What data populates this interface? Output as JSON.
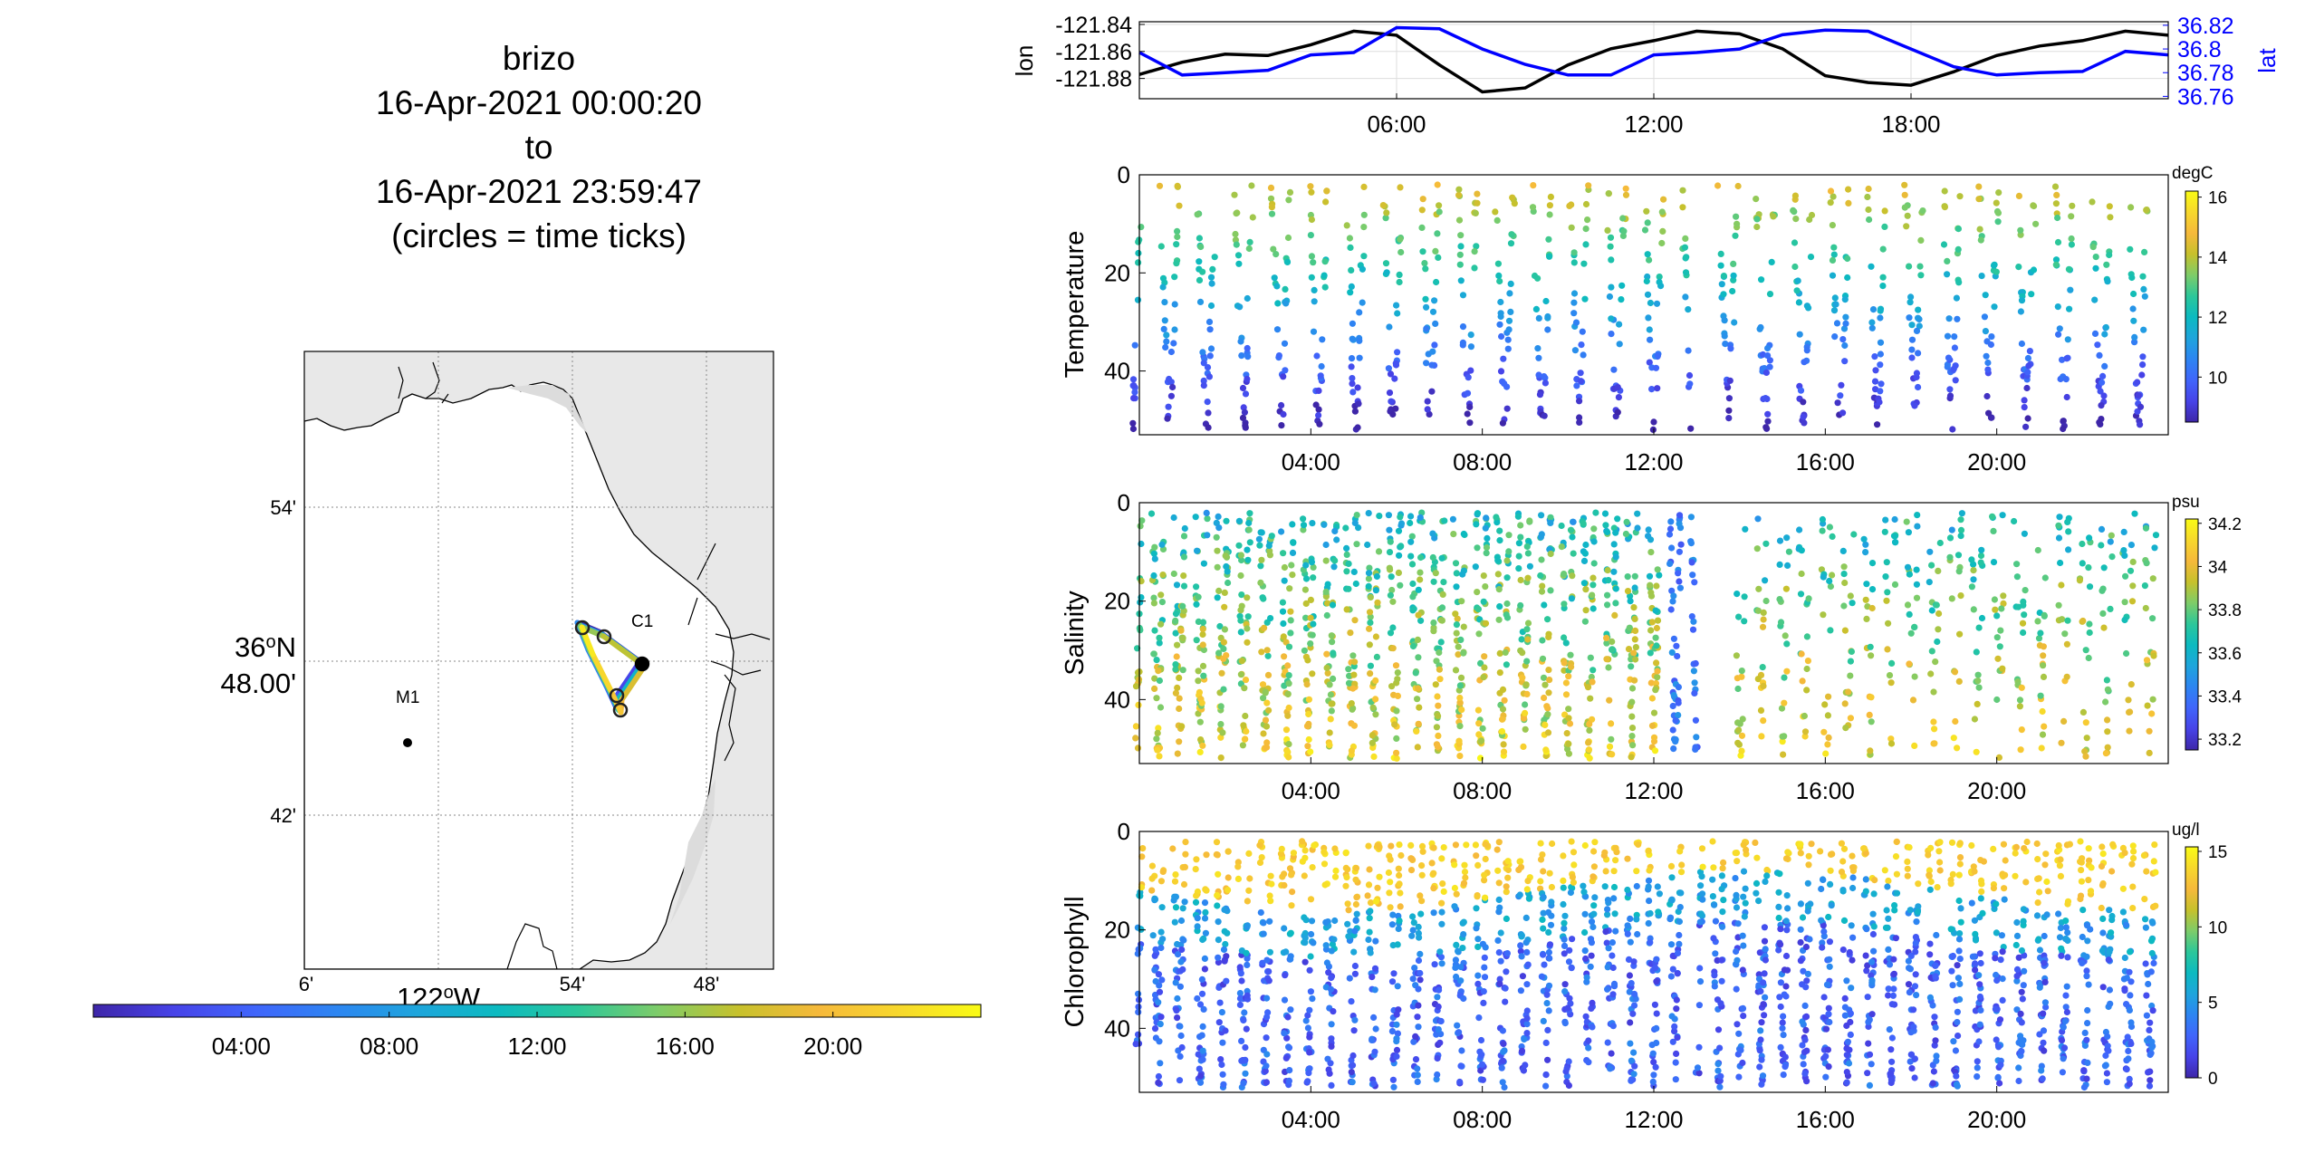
{
  "title_lines": [
    "brizo",
    "16-Apr-2021 00:00:20",
    "to",
    "16-Apr-2021 23:59:47",
    "(circles = time ticks)"
  ],
  "colors": {
    "lon_line": "#000000",
    "lat_line": "#0000ff",
    "parula": [
      "#3e26a8",
      "#4743e8",
      "#4065fb",
      "#2d85f2",
      "#1ea5dc",
      "#0cbac0",
      "#2cc79a",
      "#7ecc69",
      "#c7c12c",
      "#f6b93b",
      "#f7d82c",
      "#f9fb15"
    ]
  },
  "chart_data": [
    {
      "type": "line",
      "name": "track-timeseries",
      "x": [
        "00:00",
        "01:00",
        "02:00",
        "03:00",
        "04:00",
        "05:00",
        "06:00",
        "07:00",
        "08:00",
        "09:00",
        "10:00",
        "11:00",
        "12:00",
        "13:00",
        "14:00",
        "15:00",
        "16:00",
        "17:00",
        "18:00",
        "19:00",
        "20:00",
        "21:00",
        "22:00",
        "23:00",
        "24:00"
      ],
      "x_ticks": [
        "06:00",
        "12:00",
        "18:00"
      ],
      "series": [
        {
          "axis": "left",
          "values": [
            -121.877,
            -121.868,
            -121.862,
            -121.863,
            -121.855,
            -121.845,
            -121.848,
            -121.87,
            -121.89,
            -121.887,
            -121.87,
            -121.858,
            -121.852,
            -121.845,
            -121.847,
            -121.858,
            -121.878,
            -121.883,
            -121.885,
            -121.875,
            -121.863,
            -121.856,
            -121.852,
            -121.845,
            -121.848
          ]
        },
        {
          "axis": "right",
          "values": [
            36.797,
            36.778,
            36.78,
            36.782,
            36.795,
            36.797,
            36.818,
            36.817,
            36.8,
            36.787,
            36.778,
            36.778,
            36.795,
            36.797,
            36.8,
            36.812,
            36.816,
            36.815,
            36.8,
            36.785,
            36.778,
            36.78,
            36.781,
            36.798,
            36.795
          ]
        }
      ],
      "ylabel_left": "lon",
      "ylabel_right": "lat",
      "yticks_left": [
        "-121.84",
        "-121.86",
        "-121.88"
      ],
      "yticks_right": [
        "36.82",
        "36.8",
        "36.78",
        "36.76"
      ],
      "ylim_left": [
        -121.895,
        -121.838
      ],
      "ylim_right": [
        36.758,
        36.823
      ],
      "grid": true
    },
    {
      "type": "scatter",
      "name": "temperature-section",
      "xlim": [
        "00:00",
        "24:00"
      ],
      "x_ticks": [
        "04:00",
        "08:00",
        "12:00",
        "16:00",
        "20:00"
      ],
      "ylabel": "Temperature",
      "y_ticks": [
        "0",
        "20",
        "40"
      ],
      "ylim": [
        0,
        53
      ],
      "y_reversed": true,
      "colorbar": {
        "unit": "degC",
        "ticks": [
          "16",
          "14",
          "12",
          "10"
        ],
        "range": [
          8.5,
          16.2
        ]
      },
      "profile_depth_max": 50,
      "gap": [
        "12:50",
        "13:10"
      ]
    },
    {
      "type": "scatter",
      "name": "salinity-section",
      "xlim": [
        "00:00",
        "24:00"
      ],
      "x_ticks": [
        "04:00",
        "08:00",
        "12:00",
        "16:00",
        "20:00"
      ],
      "ylabel": "Salinity",
      "y_ticks": [
        "0",
        "20",
        "40"
      ],
      "ylim": [
        0,
        53
      ],
      "y_reversed": true,
      "colorbar": {
        "unit": "psu",
        "ticks": [
          "34.2",
          "34",
          "33.8",
          "33.6",
          "33.4",
          "33.2"
        ],
        "range": [
          33.15,
          34.22
        ]
      },
      "profile_depth_max": 50,
      "gap": [
        "13:00",
        "13:40"
      ]
    },
    {
      "type": "scatter",
      "name": "chlorophyll-section",
      "xlim": [
        "00:00",
        "24:00"
      ],
      "x_ticks": [
        "04:00",
        "08:00",
        "12:00",
        "16:00",
        "20:00"
      ],
      "ylabel": "Chlorophyll",
      "y_ticks": [
        "0",
        "20",
        "40"
      ],
      "ylim": [
        0,
        53
      ],
      "y_reversed": true,
      "colorbar": {
        "unit": "ug/l",
        "ticks": [
          "15",
          "10",
          "5",
          "0"
        ],
        "range": [
          0,
          15.3
        ]
      },
      "profile_depth_max": 50,
      "gap": [
        "12:50",
        "13:05"
      ]
    }
  ],
  "map": {
    "lat_ticks": [
      "54'",
      "42'"
    ],
    "lat_center_label_a": "36",
    "lat_center_label_sup": "o",
    "lat_center_label_b": "N",
    "lat_center_label_2": "48.00'",
    "lon_ticks": [
      "6'",
      "54'",
      "48'"
    ],
    "lon_center_label_a": "122",
    "lon_center_label_sup": "o",
    "lon_center_label_b": "W",
    "stations": [
      {
        "label": "C1"
      },
      {
        "label": "M1"
      }
    ]
  },
  "time_colorbar": {
    "ticks": [
      "04:00",
      "08:00",
      "12:00",
      "16:00",
      "20:00"
    ],
    "range": [
      "00:00",
      "24:00"
    ]
  }
}
